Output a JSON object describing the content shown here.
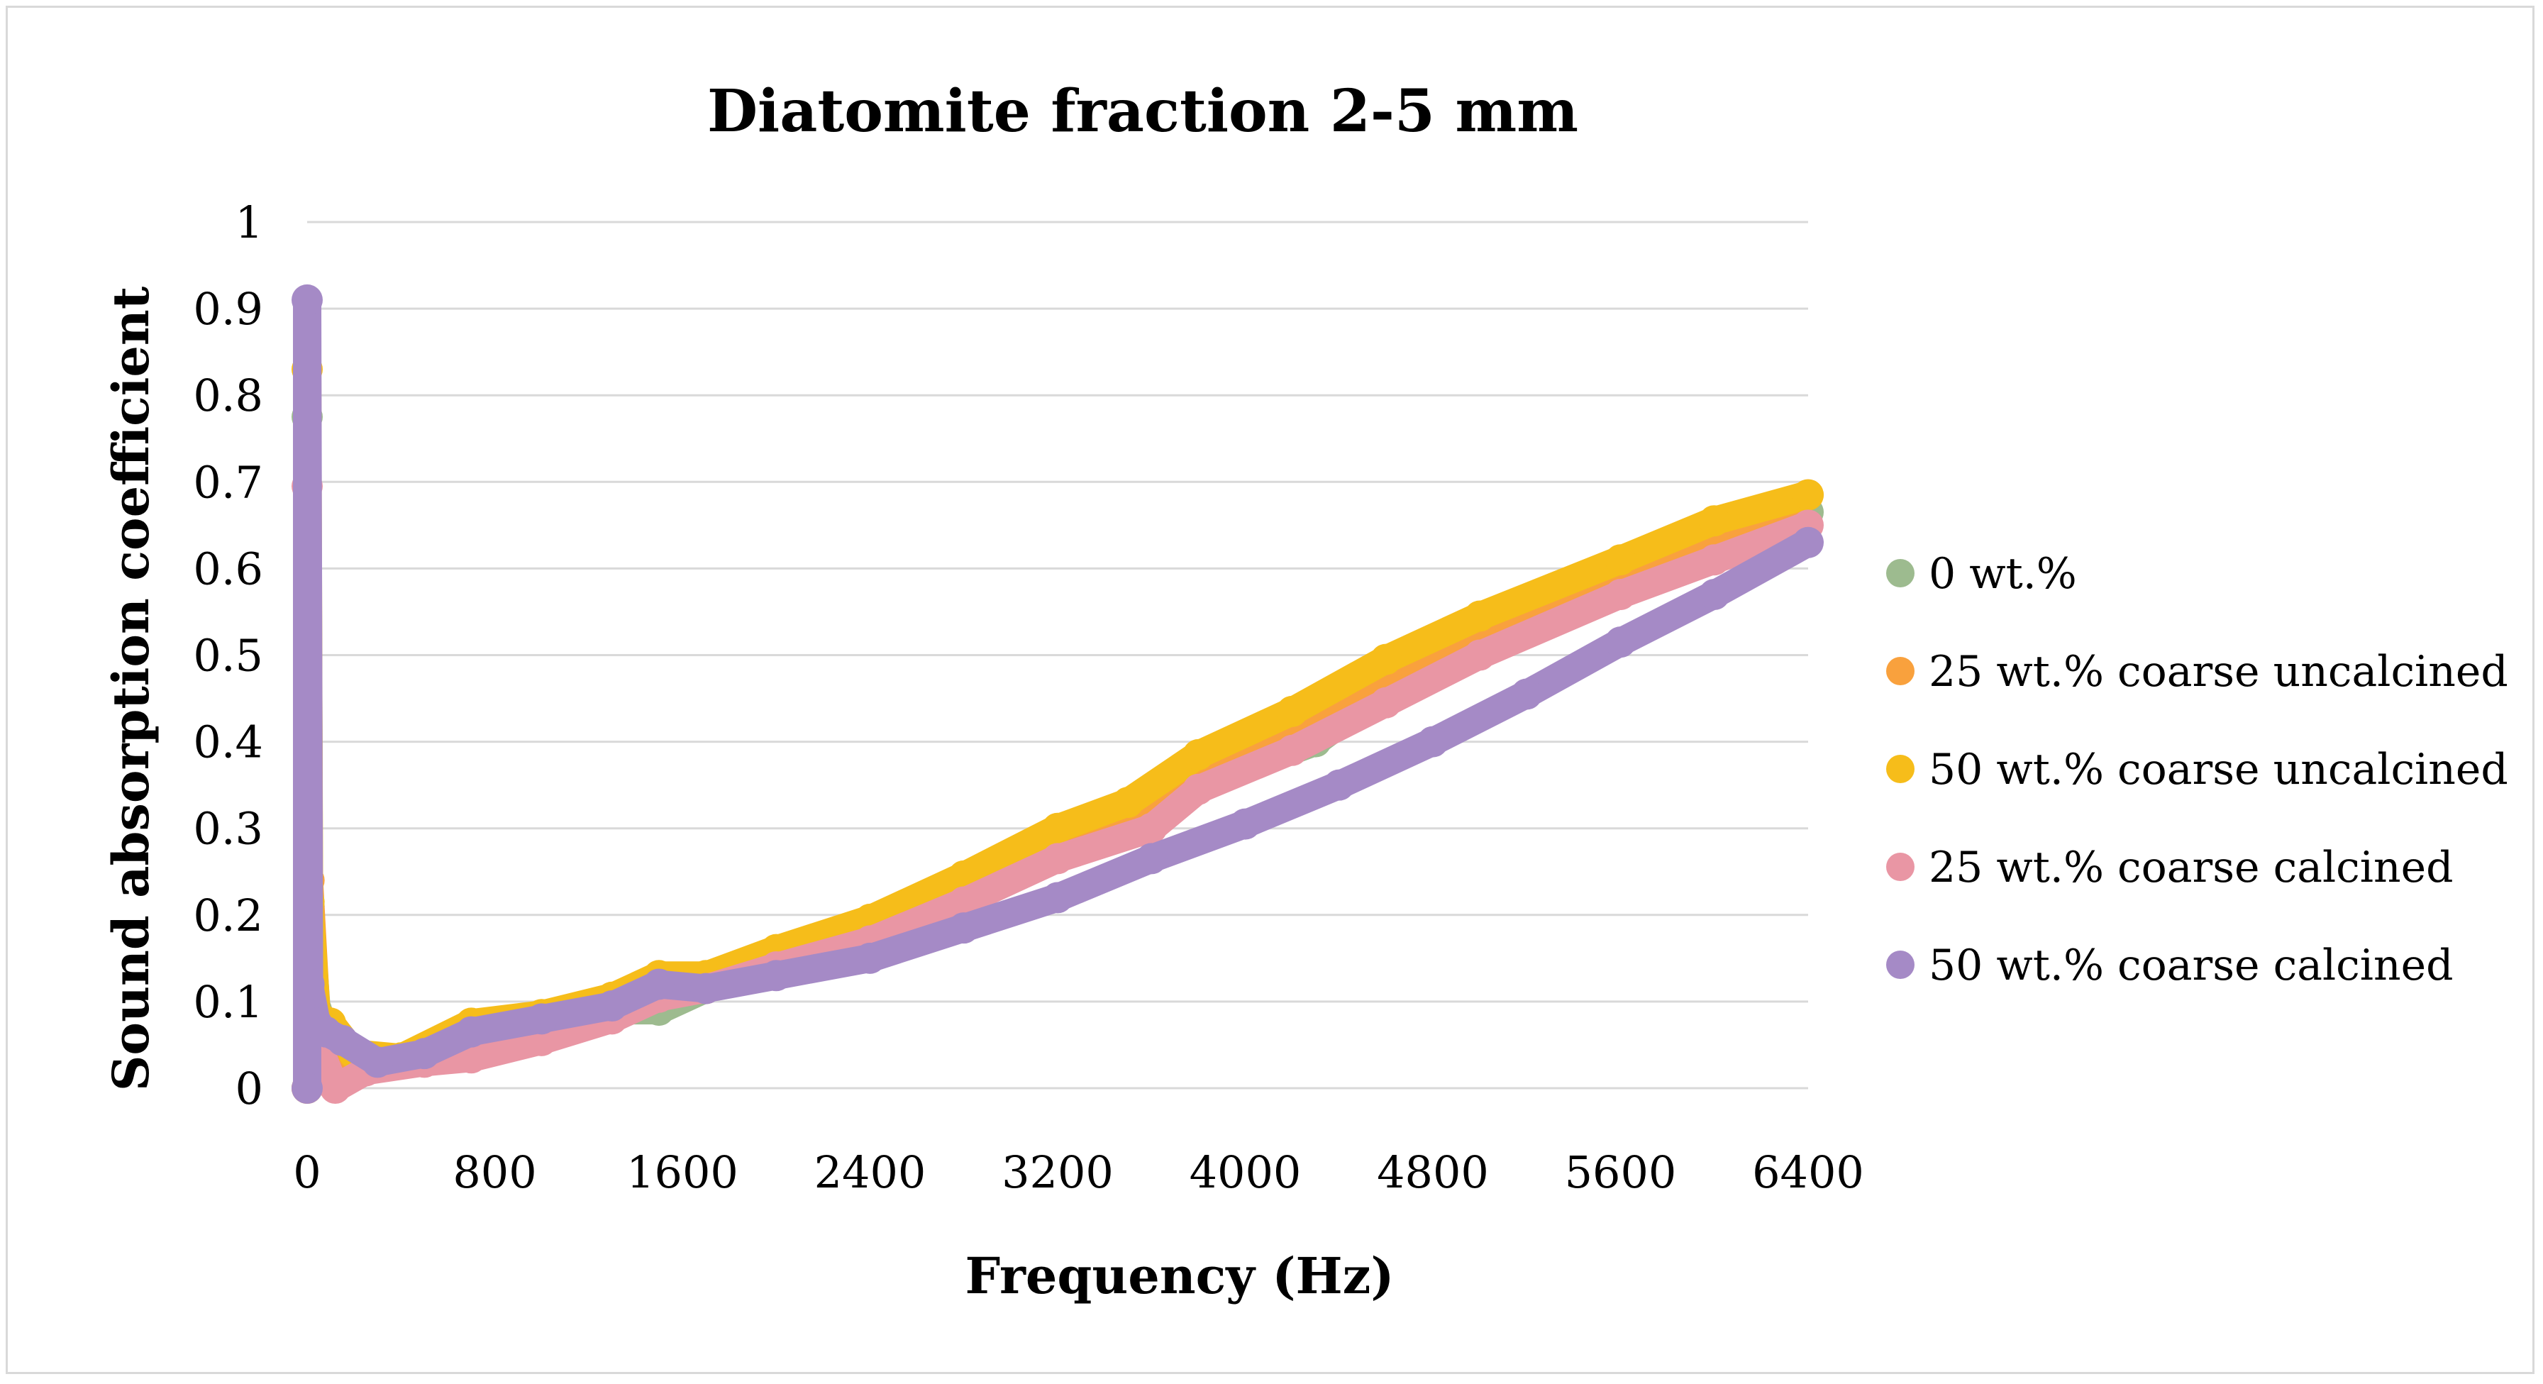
{
  "chart_data": {
    "type": "scatter",
    "title": "Diatomite fraction 2-5 mm",
    "xlabel": "Frequency (Hz)",
    "ylabel": "Sound absorption coefficient",
    "xlim": [
      0,
      6400
    ],
    "ylim": [
      0,
      1
    ],
    "xticks": [
      0,
      800,
      1600,
      2400,
      3200,
      4000,
      4800,
      5600,
      6400
    ],
    "yticks": [
      0,
      0.1,
      0.2,
      0.3,
      0.4,
      0.5,
      0.6,
      0.7,
      0.8,
      0.9,
      1
    ],
    "xtick_labels": [
      "0",
      "800",
      "1600",
      "2400",
      "3200",
      "4000",
      "4800",
      "5600",
      "6400"
    ],
    "ytick_labels": [
      "0",
      "0.1",
      "0.2",
      "0.3",
      "0.4",
      "0.5",
      "0.6",
      "0.7",
      "0.8",
      "0.9",
      "1"
    ],
    "grid": true,
    "legend_position": "right",
    "series": [
      {
        "name": "0 wt.%",
        "color": "#9dbb8f",
        "points": [
          [
            0,
            0
          ],
          [
            0,
            0.775
          ],
          [
            8,
            0.21
          ],
          [
            40,
            0.09
          ],
          [
            80,
            0.06
          ],
          [
            150,
            0.04
          ],
          [
            300,
            0.03
          ],
          [
            500,
            0.035
          ],
          [
            700,
            0.04
          ],
          [
            1000,
            0.07
          ],
          [
            1300,
            0.09
          ],
          [
            1500,
            0.09
          ],
          [
            1700,
            0.115
          ],
          [
            2000,
            0.14
          ],
          [
            2400,
            0.175
          ],
          [
            2800,
            0.225
          ],
          [
            3200,
            0.28
          ],
          [
            3600,
            0.33
          ],
          [
            4000,
            0.37
          ],
          [
            4300,
            0.4
          ],
          [
            4600,
            0.46
          ],
          [
            5000,
            0.51
          ],
          [
            5600,
            0.575
          ],
          [
            6000,
            0.62
          ],
          [
            6400,
            0.665
          ]
        ]
      },
      {
        "name": "25 wt.% coarse uncalcined",
        "color": "#f9a13d",
        "points": [
          [
            0,
            0
          ],
          [
            8,
            0.24
          ],
          [
            40,
            0.08
          ],
          [
            80,
            0.06
          ],
          [
            150,
            0.04
          ],
          [
            300,
            0.03
          ],
          [
            500,
            0.035
          ],
          [
            700,
            0.045
          ],
          [
            1000,
            0.075
          ],
          [
            1300,
            0.095
          ],
          [
            1500,
            0.115
          ],
          [
            1700,
            0.12
          ],
          [
            2000,
            0.145
          ],
          [
            2400,
            0.18
          ],
          [
            2800,
            0.23
          ],
          [
            3200,
            0.285
          ],
          [
            3500,
            0.31
          ],
          [
            3800,
            0.36
          ],
          [
            4200,
            0.42
          ],
          [
            4600,
            0.48
          ],
          [
            5000,
            0.53
          ],
          [
            5600,
            0.595
          ],
          [
            6000,
            0.64
          ],
          [
            6400,
            0.685
          ]
        ]
      },
      {
        "name": "50 wt.% coarse uncalcined",
        "color": "#f6bd1a",
        "points": [
          [
            0,
            0
          ],
          [
            0,
            0.83
          ],
          [
            8,
            0.215
          ],
          [
            40,
            0.085
          ],
          [
            100,
            0.075
          ],
          [
            200,
            0.04
          ],
          [
            400,
            0.035
          ],
          [
            700,
            0.075
          ],
          [
            1000,
            0.085
          ],
          [
            1300,
            0.105
          ],
          [
            1500,
            0.13
          ],
          [
            1700,
            0.13
          ],
          [
            2000,
            0.16
          ],
          [
            2400,
            0.195
          ],
          [
            2800,
            0.245
          ],
          [
            3200,
            0.3
          ],
          [
            3500,
            0.33
          ],
          [
            3800,
            0.385
          ],
          [
            4200,
            0.435
          ],
          [
            4600,
            0.495
          ],
          [
            5000,
            0.545
          ],
          [
            5600,
            0.61
          ],
          [
            6000,
            0.655
          ],
          [
            6400,
            0.685
          ]
        ]
      },
      {
        "name": "25 wt.% coarse calcined",
        "color": "#e996a4",
        "points": [
          [
            0,
            0
          ],
          [
            0,
            0.695
          ],
          [
            8,
            0.09
          ],
          [
            60,
            0.04
          ],
          [
            120,
            0.0
          ],
          [
            250,
            0.02
          ],
          [
            500,
            0.03
          ],
          [
            700,
            0.035
          ],
          [
            1000,
            0.055
          ],
          [
            1300,
            0.08
          ],
          [
            1500,
            0.105
          ],
          [
            1700,
            0.115
          ],
          [
            2000,
            0.14
          ],
          [
            2400,
            0.17
          ],
          [
            2800,
            0.215
          ],
          [
            3200,
            0.265
          ],
          [
            3600,
            0.3
          ],
          [
            3800,
            0.345
          ],
          [
            4200,
            0.39
          ],
          [
            4600,
            0.445
          ],
          [
            5000,
            0.5
          ],
          [
            5600,
            0.57
          ],
          [
            6000,
            0.61
          ],
          [
            6400,
            0.65
          ]
        ]
      },
      {
        "name": "50 wt.% coarse calcined",
        "color": "#a58ac6",
        "points": [
          [
            0,
            0
          ],
          [
            0,
            0.91
          ],
          [
            8,
            0.12
          ],
          [
            40,
            0.075
          ],
          [
            80,
            0.065
          ],
          [
            150,
            0.055
          ],
          [
            300,
            0.03
          ],
          [
            500,
            0.04
          ],
          [
            700,
            0.065
          ],
          [
            1000,
            0.08
          ],
          [
            1300,
            0.095
          ],
          [
            1500,
            0.12
          ],
          [
            1700,
            0.115
          ],
          [
            2000,
            0.13
          ],
          [
            2400,
            0.15
          ],
          [
            2800,
            0.185
          ],
          [
            3200,
            0.22
          ],
          [
            3600,
            0.265
          ],
          [
            4000,
            0.305
          ],
          [
            4400,
            0.35
          ],
          [
            4800,
            0.4
          ],
          [
            5200,
            0.455
          ],
          [
            5600,
            0.515
          ],
          [
            6000,
            0.57
          ],
          [
            6400,
            0.63
          ]
        ]
      }
    ]
  }
}
